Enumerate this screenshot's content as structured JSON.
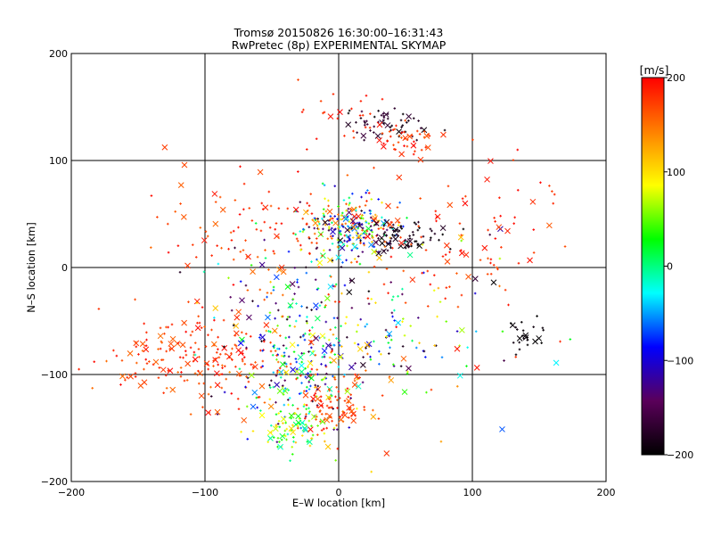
{
  "chart_data": {
    "type": "scatter",
    "title": "Tromsø 20150826 16:30:00–16:31:43",
    "subtitle": "RwPretec (8p) EXPERIMENTAL SKYMAP",
    "xlabel": "E–W location [km]",
    "ylabel": "N–S location [km]",
    "xlim": [
      -200,
      200
    ],
    "ylim": [
      -200,
      200
    ],
    "xticks": [
      -200,
      -100,
      0,
      100,
      200
    ],
    "yticks": [
      -200,
      -100,
      0,
      100,
      200
    ],
    "grid": true,
    "markers": {
      "small": "+",
      "large": "x"
    },
    "colorbar": {
      "label": "[m/s]",
      "range": [
        -200,
        200
      ],
      "ticks": [
        200,
        100,
        0,
        -100,
        -200
      ],
      "colormap": [
        "#000000",
        "#5a005a",
        "#0000ff",
        "#00ffff",
        "#00ff00",
        "#ffff00",
        "#ff8000",
        "#ff0000"
      ]
    },
    "clusters": [
      {
        "cx": 10,
        "cy": 38,
        "sx": 18,
        "sy": 14,
        "n": 260,
        "vmin": -200,
        "vmax": 200
      },
      {
        "cx": 48,
        "cy": 28,
        "sx": 14,
        "sy": 8,
        "n": 70,
        "vmin": -200,
        "vmax": -170
      },
      {
        "cx": 35,
        "cy": 135,
        "sx": 14,
        "sy": 7,
        "n": 55,
        "vmin": -200,
        "vmax": -160
      },
      {
        "cx": 50,
        "cy": 120,
        "sx": 12,
        "sy": 9,
        "n": 45,
        "vmin": 160,
        "vmax": 200
      },
      {
        "cx": 0,
        "cy": 140,
        "sx": 22,
        "sy": 25,
        "n": 25,
        "vmin": 170,
        "vmax": 200
      },
      {
        "cx": -30,
        "cy": -110,
        "sx": 18,
        "sy": 25,
        "n": 120,
        "vmin": -200,
        "vmax": 100
      },
      {
        "cx": -35,
        "cy": -150,
        "sx": 12,
        "sy": 12,
        "n": 70,
        "vmin": -20,
        "vmax": 120
      },
      {
        "cx": 0,
        "cy": -125,
        "sx": 15,
        "sy": 15,
        "n": 90,
        "vmin": 150,
        "vmax": 200
      },
      {
        "cx": -110,
        "cy": -85,
        "sx": 35,
        "sy": 25,
        "n": 200,
        "vmin": 150,
        "vmax": 200
      },
      {
        "cx": -20,
        "cy": -50,
        "sx": 40,
        "sy": 40,
        "n": 240,
        "vmin": -200,
        "vmax": 200
      },
      {
        "cx": 140,
        "cy": -60,
        "sx": 8,
        "sy": 8,
        "n": 25,
        "vmin": -200,
        "vmax": -190
      },
      {
        "cx": 120,
        "cy": 50,
        "sx": 30,
        "sy": 30,
        "n": 35,
        "vmin": 170,
        "vmax": 200
      },
      {
        "cx": -60,
        "cy": 40,
        "sx": 40,
        "sy": 25,
        "n": 90,
        "vmin": 150,
        "vmax": 200
      },
      {
        "cx": 40,
        "cy": -60,
        "sx": 50,
        "sy": 50,
        "n": 110,
        "vmin": -200,
        "vmax": 200
      },
      {
        "cx": 70,
        "cy": 10,
        "sx": 40,
        "sy": 20,
        "n": 60,
        "vmin": 160,
        "vmax": 200
      }
    ]
  }
}
